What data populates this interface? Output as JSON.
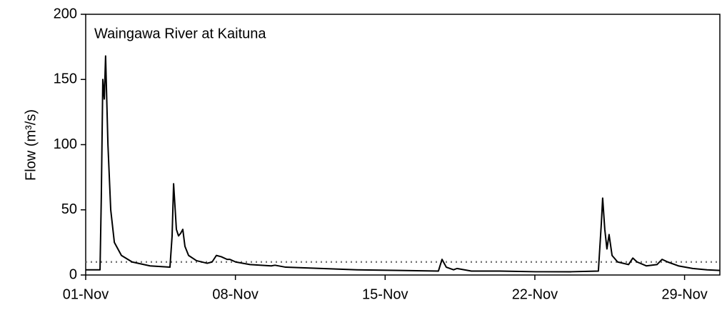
{
  "chart_data": {
    "type": "line",
    "title": "Waingawa River at Kaituna",
    "ylabel": "Flow (m³/s)",
    "xlim": [
      1,
      30.65
    ],
    "xticks": [
      {
        "value": 1,
        "label": "01-Nov"
      },
      {
        "value": 8,
        "label": "08-Nov"
      },
      {
        "value": 15,
        "label": "15-Nov"
      },
      {
        "value": 22,
        "label": "22-Nov"
      },
      {
        "value": 29,
        "label": "29-Nov"
      }
    ],
    "ylim": [
      0,
      200
    ],
    "yticks": [
      0,
      50,
      100,
      150,
      200
    ],
    "reference_line": 10,
    "series": [
      {
        "color": "#000000",
        "x": [
          1.0,
          1.67,
          1.73,
          1.8,
          1.87,
          1.93,
          2.04,
          2.17,
          2.34,
          2.67,
          3.17,
          4.01,
          4.94,
          5.04,
          5.11,
          5.24,
          5.34,
          5.44,
          5.54,
          5.64,
          5.81,
          6.18,
          6.68,
          6.91,
          7.11,
          7.34,
          7.61,
          7.74,
          8.01,
          8.68,
          9.68,
          9.85,
          10.35,
          12.02,
          13.69,
          15.69,
          17.49,
          17.66,
          17.86,
          18.2,
          18.36,
          19.03,
          20.37,
          22.04,
          23.7,
          24.97,
          25.11,
          25.17,
          25.27,
          25.37,
          25.47,
          25.61,
          25.87,
          26.38,
          26.58,
          26.78,
          27.21,
          27.71,
          27.95,
          28.21,
          28.71,
          29.38,
          30.05,
          30.65
        ],
        "values": [
          4,
          4,
          60,
          150,
          135,
          168,
          100,
          50,
          25,
          15,
          10,
          7,
          6,
          30,
          70,
          35,
          30,
          32,
          35,
          22,
          15,
          11,
          9,
          10,
          15,
          14,
          12,
          12,
          10,
          8,
          7,
          7.5,
          6,
          5,
          4,
          3.5,
          3,
          12,
          6,
          4,
          5,
          3,
          3,
          2.5,
          2.5,
          3,
          40,
          59,
          35,
          20,
          31,
          15,
          10,
          8,
          13,
          10,
          7,
          8,
          12,
          10,
          7,
          5,
          4,
          3.5
        ]
      }
    ]
  }
}
